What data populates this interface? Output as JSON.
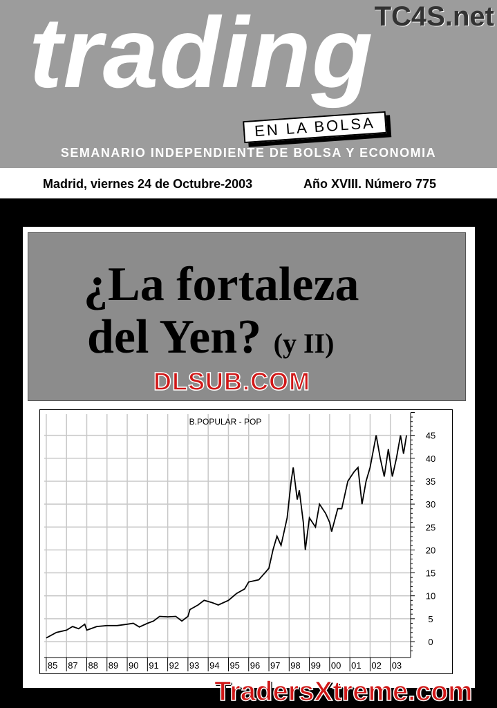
{
  "masthead": {
    "site": "TC4S.net",
    "brand": "trading",
    "tagline_box": "EN LA BOLSA",
    "subtitle": "SEMANARIO INDEPENDIENTE DE BOLSA Y ECONOMIA",
    "date": "Madrid, viernes 24 de Octubre-2003",
    "issue": "Año XVIII. Número 775"
  },
  "headline": {
    "line1": "¿La fortaleza",
    "line2": "del Yen?",
    "part": "(y II)"
  },
  "watermarks": {
    "top": "DLSUB.COM",
    "bottom": "TradersXtreme.com",
    "color": "#d01818"
  },
  "chart_data": {
    "type": "line",
    "title": "B.POPULAR - POP",
    "xlabel": "",
    "ylabel": "",
    "x_tick_labels": [
      "85",
      "87",
      "88",
      "89",
      "90",
      "91",
      "92",
      "93",
      "94",
      "95",
      "96",
      "97",
      "98",
      "99",
      "00",
      "01",
      "02",
      "03"
    ],
    "y_ticks": [
      0,
      5,
      10,
      15,
      20,
      25,
      30,
      35,
      40,
      45
    ],
    "ylim": [
      -2,
      50
    ],
    "grid": true,
    "y_axis_side": "right",
    "series": [
      {
        "points": [
          [
            1986.0,
            0.8
          ],
          [
            1986.5,
            2.0
          ],
          [
            1987.0,
            2.5
          ],
          [
            1987.3,
            3.3
          ],
          [
            1987.6,
            2.8
          ],
          [
            1987.9,
            3.8
          ],
          [
            1988.0,
            2.5
          ],
          [
            1988.5,
            3.3
          ],
          [
            1989.0,
            3.5
          ],
          [
            1989.5,
            3.5
          ],
          [
            1990.0,
            3.8
          ],
          [
            1990.3,
            4.0
          ],
          [
            1990.6,
            3.2
          ],
          [
            1991.0,
            4.0
          ],
          [
            1991.3,
            4.5
          ],
          [
            1991.6,
            5.5
          ],
          [
            1992.0,
            5.4
          ],
          [
            1992.4,
            5.5
          ],
          [
            1992.7,
            4.5
          ],
          [
            1993.0,
            5.5
          ],
          [
            1993.1,
            7.0
          ],
          [
            1993.5,
            8.0
          ],
          [
            1993.8,
            9.0
          ],
          [
            1994.2,
            8.5
          ],
          [
            1994.5,
            8.0
          ],
          [
            1995.0,
            9.0
          ],
          [
            1995.4,
            10.5
          ],
          [
            1995.8,
            11.5
          ],
          [
            1996.0,
            13
          ],
          [
            1996.5,
            13.5
          ],
          [
            1996.8,
            15
          ],
          [
            1997.0,
            16
          ],
          [
            1997.2,
            20
          ],
          [
            1997.4,
            23
          ],
          [
            1997.6,
            21
          ],
          [
            1997.9,
            27
          ],
          [
            1998.1,
            35
          ],
          [
            1998.2,
            38
          ],
          [
            1998.4,
            31
          ],
          [
            1998.5,
            33
          ],
          [
            1998.7,
            26
          ],
          [
            1998.8,
            20
          ],
          [
            1999.0,
            27
          ],
          [
            1999.3,
            25
          ],
          [
            1999.5,
            30
          ],
          [
            1999.8,
            28
          ],
          [
            2000.0,
            26
          ],
          [
            2000.1,
            24
          ],
          [
            2000.4,
            29
          ],
          [
            2000.6,
            29
          ],
          [
            2000.9,
            35
          ],
          [
            2001.2,
            37
          ],
          [
            2001.4,
            38
          ],
          [
            2001.6,
            30
          ],
          [
            2001.8,
            35
          ],
          [
            2002.0,
            38
          ],
          [
            2002.3,
            45
          ],
          [
            2002.5,
            40
          ],
          [
            2002.7,
            36
          ],
          [
            2002.9,
            42
          ],
          [
            2003.1,
            36
          ],
          [
            2003.3,
            40
          ],
          [
            2003.5,
            45
          ],
          [
            2003.65,
            41
          ],
          [
            2003.8,
            45
          ]
        ]
      }
    ]
  }
}
